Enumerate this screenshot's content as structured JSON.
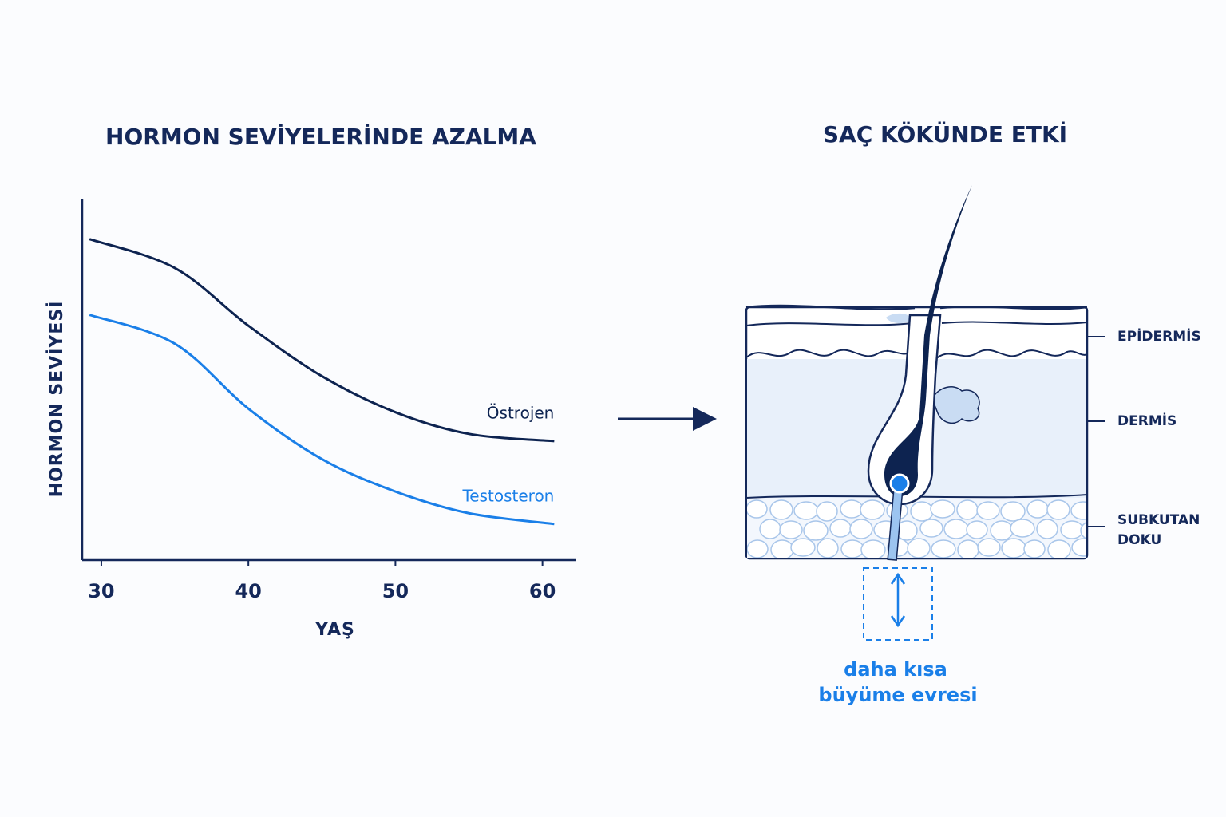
{
  "chart_data": {
    "type": "line",
    "title": "HORMON SEVİYELERİNDE AZALMA",
    "x_label": "YAŞ",
    "y_label": "HORMON SEVİYESİ",
    "x": [
      29.2,
      35,
      40,
      45,
      50,
      55,
      60.8
    ],
    "series": [
      {
        "name": "Östrojen",
        "color": "#0d2350",
        "values": [
          89,
          81,
          65,
          51,
          41,
          35,
          33
        ]
      },
      {
        "name": "Testosteron",
        "color": "#1a7fe8",
        "values": [
          68,
          60,
          42,
          28,
          19,
          13,
          10
        ]
      }
    ],
    "xlim": [
      28.7,
      62.3
    ],
    "xticks": [
      30,
      40,
      50,
      60
    ],
    "ylim": [
      0,
      100
    ]
  },
  "diagram": {
    "title": "SAÇ KÖKÜNDE ETKİ",
    "layers": [
      [
        "EPİDERMİS"
      ],
      [
        "DERMİS"
      ],
      [
        "SUBKUTAN",
        "DOKU"
      ]
    ],
    "note": [
      "daha kısa",
      "büyüme evresi"
    ]
  }
}
